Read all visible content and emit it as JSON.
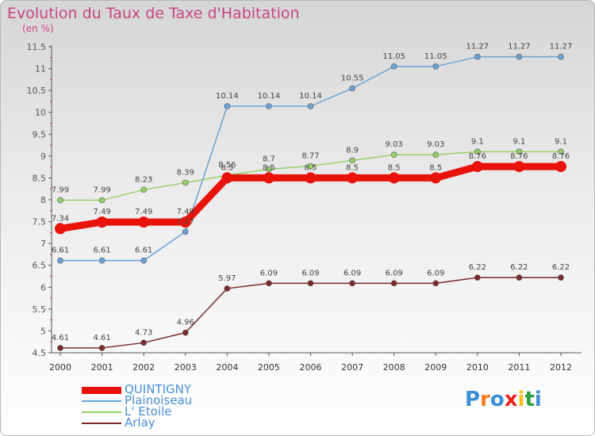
{
  "title": "Evolution du Taux de Taxe d'Habitation",
  "unit": "(en %)",
  "logo": {
    "letters": [
      "P",
      "r",
      "o",
      "x",
      "i",
      "t",
      "i"
    ],
    "colors": [
      "#3a8fd6",
      "#f07c1e",
      "#3a8fd6",
      "#e8261b",
      "#f5c116",
      "#2b9f3d",
      "#3a8fd6"
    ]
  },
  "chart_data": {
    "type": "line",
    "title": "Evolution du Taux de Taxe d'Habitation",
    "ylabel": "(en %)",
    "xlabel": "",
    "x": [
      "2000",
      "2001",
      "2002",
      "2003",
      "2004",
      "2005",
      "2006",
      "2007",
      "2008",
      "2009",
      "2010",
      "2011",
      "2012"
    ],
    "ylim": [
      4.5,
      11.5
    ],
    "yticks": [
      "4.5",
      "5",
      "5.5",
      "6",
      "6.5",
      "7",
      "7.5",
      "8",
      "8.5",
      "9",
      "9.5",
      "10",
      "10.5",
      "11",
      "11.5"
    ],
    "grid": false,
    "legend_position": "bottom-left",
    "series": [
      {
        "name": "QUINTIGNY",
        "color": "#e8130b",
        "values": [
          7.34,
          7.49,
          7.49,
          7.49,
          8.5,
          8.5,
          8.5,
          8.5,
          8.5,
          8.5,
          8.76,
          8.76,
          8.76
        ],
        "labels": [
          "7.34",
          "7.49",
          "7.49",
          "7.49",
          "8.5",
          "8.5",
          "8.5",
          "8.5",
          "8.5",
          "8.5",
          "8.76",
          "8.76",
          "8.76"
        ]
      },
      {
        "name": "Plainoiseau",
        "color": "#6aa3d6",
        "values": [
          6.61,
          6.61,
          6.61,
          7.27,
          10.14,
          10.14,
          10.14,
          10.55,
          11.05,
          11.05,
          11.27,
          11.27,
          11.27
        ],
        "labels": [
          "6.61",
          "6.61",
          "6.61",
          "7.27",
          "10.14",
          "10.14",
          "10.14",
          "10.55",
          "11.05",
          "11.05",
          "11.27",
          "11.27",
          "11.27"
        ]
      },
      {
        "name": "L' Etoile",
        "color": "#95d16a",
        "values": [
          7.99,
          7.99,
          8.23,
          8.39,
          8.56,
          8.7,
          8.77,
          8.9,
          9.03,
          9.03,
          9.1,
          9.1,
          9.1
        ],
        "labels": [
          "7.99",
          "7.99",
          "8.23",
          "8.39",
          "8.56",
          "8.7",
          "8.77",
          "8.9",
          "9.03",
          "9.03",
          "9.1",
          "9.1",
          "9.1"
        ]
      },
      {
        "name": "Arlay",
        "color": "#7a2a2a",
        "values": [
          4.61,
          4.61,
          4.73,
          4.96,
          5.97,
          6.09,
          6.09,
          6.09,
          6.09,
          6.09,
          6.22,
          6.22,
          6.22
        ],
        "labels": [
          "4.61",
          "4.61",
          "4.73",
          "4.96",
          "5.97",
          "6.09",
          "6.09",
          "6.09",
          "6.09",
          "6.09",
          "6.22",
          "6.22",
          "6.22"
        ]
      }
    ]
  }
}
